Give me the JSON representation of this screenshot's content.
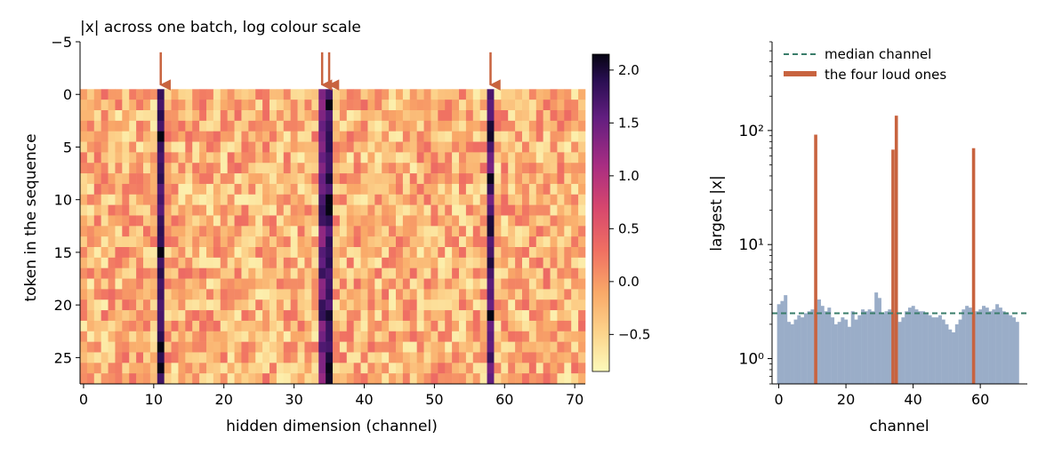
{
  "chart_data": [
    {
      "type": "heatmap",
      "title": "|x| across one batch, log colour scale",
      "xlabel": "hidden dimension (channel)",
      "ylabel": "token in the sequence",
      "n_channels": 72,
      "n_tokens": 28,
      "xlim": [
        -0.5,
        71.5
      ],
      "ylim": [
        27.5,
        -5
      ],
      "xticks": [
        0,
        10,
        20,
        30,
        40,
        50,
        60,
        70
      ],
      "yticks": [
        -5,
        0,
        5,
        10,
        15,
        20,
        25
      ],
      "arrow_channels": [
        11,
        34,
        35,
        58
      ],
      "colorbar": {
        "min": -0.85,
        "max": 2.15,
        "ticks": [
          "2.0",
          "1.5",
          "1.0",
          "0.5",
          "0.0",
          "−0.5"
        ],
        "tick_values": [
          2.0,
          1.5,
          1.0,
          0.5,
          0.0,
          -0.5
        ],
        "colormap": "magma_r"
      },
      "outlier_channels": {
        "11": 1.95,
        "34": 1.55,
        "35": 1.9,
        "58": 1.75
      },
      "grid": false
    },
    {
      "type": "bar",
      "xlabel": "channel",
      "ylabel": "largest |x|",
      "yscale": "log",
      "ylim": [
        0.6,
        600
      ],
      "xlim": [
        -2,
        74
      ],
      "xticks": [
        0,
        20,
        40,
        60
      ],
      "yticks": [
        "10⁰",
        "10¹",
        "10²"
      ],
      "ytick_values": [
        1,
        10,
        100
      ],
      "median_line": {
        "label": "median channel",
        "value": 2.5,
        "color": "#3a7d6a"
      },
      "base_series": {
        "color": "#9aadc8",
        "values": [
          3.0,
          3.2,
          3.6,
          2.1,
          2.0,
          2.2,
          2.4,
          2.3,
          2.5,
          2.6,
          2.7,
          2.5,
          3.3,
          2.9,
          2.6,
          2.8,
          2.3,
          2.0,
          2.1,
          2.3,
          2.2,
          1.9,
          2.6,
          2.2,
          2.4,
          2.7,
          2.6,
          2.7,
          2.6,
          3.8,
          3.4,
          2.5,
          2.6,
          2.7,
          2.5,
          2.5,
          2.1,
          2.3,
          2.6,
          2.8,
          2.9,
          2.7,
          2.6,
          2.6,
          2.5,
          2.4,
          2.3,
          2.3,
          2.4,
          2.2,
          2.0,
          1.8,
          1.7,
          2.0,
          2.2,
          2.7,
          2.9,
          2.8,
          2.5,
          2.6,
          2.7,
          2.9,
          2.8,
          2.6,
          2.7,
          3.0,
          2.8,
          2.6,
          2.5,
          2.4,
          2.3,
          2.1
        ]
      },
      "loud_series": {
        "name": "the four loud ones",
        "color": "#c8633f",
        "channels": [
          11,
          34,
          35,
          58
        ],
        "values": [
          92,
          68,
          135,
          70
        ]
      }
    }
  ]
}
